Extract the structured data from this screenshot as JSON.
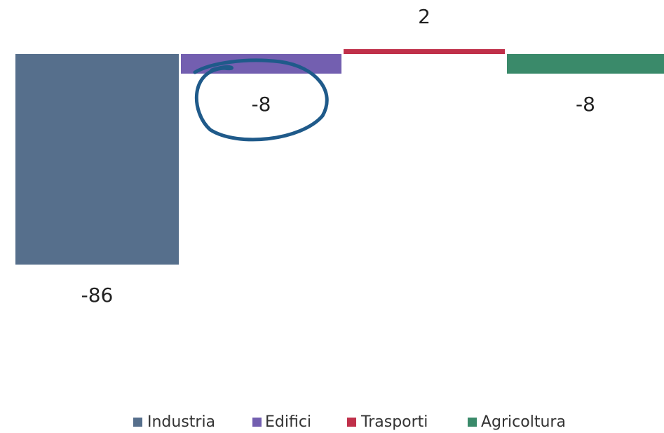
{
  "chart_data": {
    "type": "bar",
    "categories": [
      null
    ],
    "series": [
      {
        "name": "Industria",
        "color": "#566f8c",
        "values": [
          -86
        ]
      },
      {
        "name": "Edifici",
        "color": "#735fb0",
        "values": [
          -8
        ]
      },
      {
        "name": "Trasporti",
        "color": "#c0304a",
        "values": [
          2
        ]
      },
      {
        "name": "Agricoltura",
        "color": "#3a8a6a",
        "values": [
          -8
        ]
      }
    ]
  }
}
